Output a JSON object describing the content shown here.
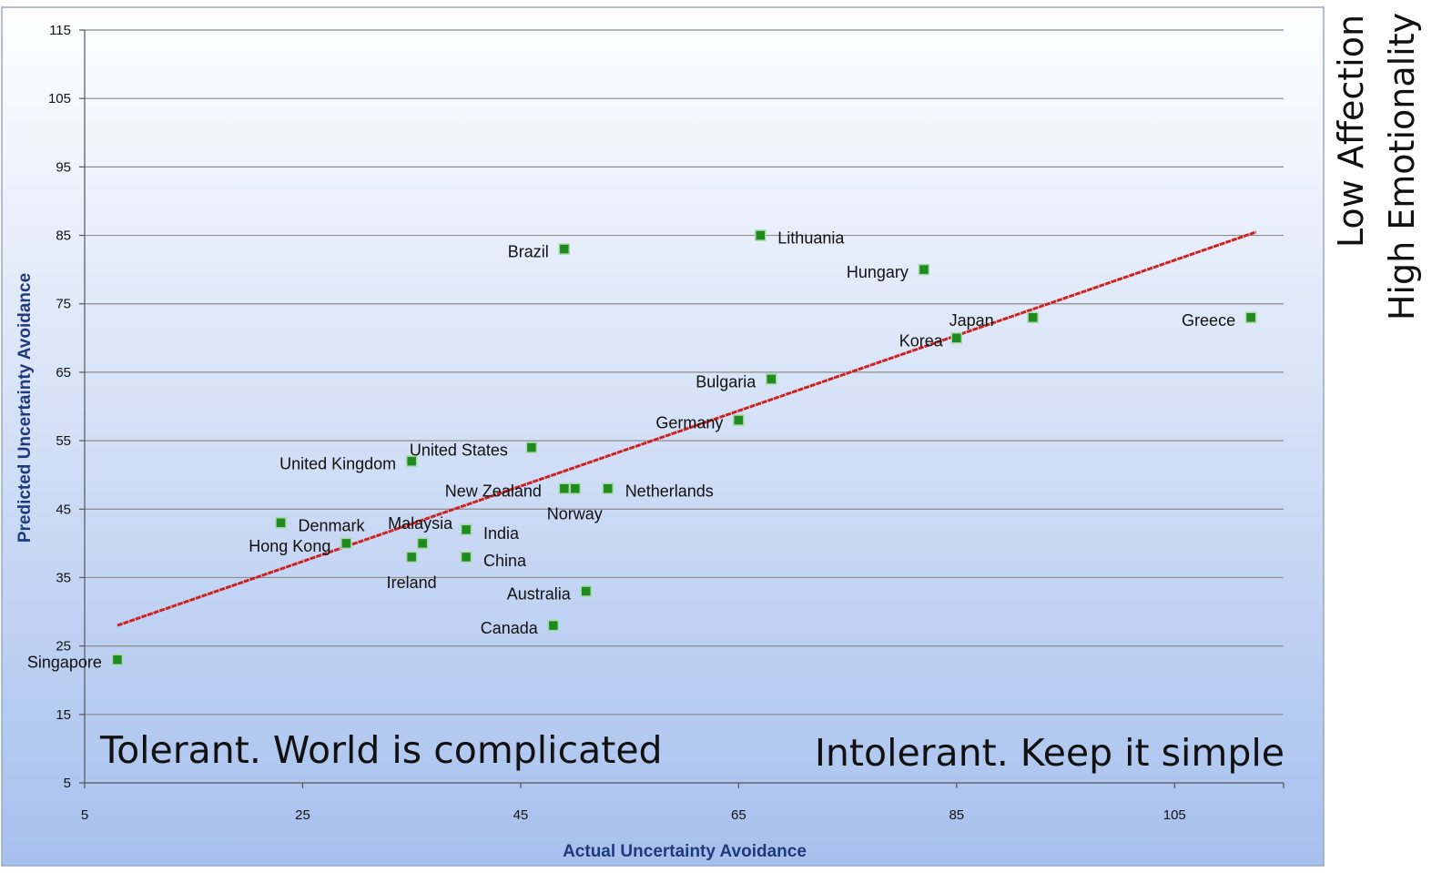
{
  "chart_data": {
    "type": "scatter",
    "title": "",
    "xlabel": "Actual Uncertainty Avoidance",
    "ylabel": "Predicted Uncertainty Avoidance",
    "xlim": [
      5,
      115
    ],
    "ylim": [
      5,
      115
    ],
    "x_ticks": [
      5,
      25,
      45,
      65,
      85,
      105
    ],
    "y_ticks": [
      5,
      15,
      25,
      35,
      45,
      55,
      65,
      75,
      85,
      95,
      105,
      115
    ],
    "grid": "horizontal",
    "legend": "none",
    "points": [
      {
        "label": "Singapore",
        "x": 8,
        "y": 23
      },
      {
        "label": "Denmark",
        "x": 23,
        "y": 43
      },
      {
        "label": "Hong Kong",
        "x": 29,
        "y": 40
      },
      {
        "label": "Ireland",
        "x": 35,
        "y": 38
      },
      {
        "label": "United Kingdom",
        "x": 35,
        "y": 52
      },
      {
        "label": "Malaysia",
        "x": 36,
        "y": 40
      },
      {
        "label": "India",
        "x": 40,
        "y": 42
      },
      {
        "label": "China",
        "x": 40,
        "y": 38
      },
      {
        "label": "United States",
        "x": 46,
        "y": 54
      },
      {
        "label": "Canada",
        "x": 48,
        "y": 28
      },
      {
        "label": "Brazil",
        "x": 49,
        "y": 83
      },
      {
        "label": "New Zealand",
        "x": 49,
        "y": 48
      },
      {
        "label": "Norway",
        "x": 50,
        "y": 48
      },
      {
        "label": "Australia",
        "x": 51,
        "y": 33
      },
      {
        "label": "Netherlands",
        "x": 53,
        "y": 48
      },
      {
        "label": "Germany",
        "x": 65,
        "y": 58
      },
      {
        "label": "Lithuania",
        "x": 67,
        "y": 85
      },
      {
        "label": "Bulgaria",
        "x": 68,
        "y": 64
      },
      {
        "label": "Hungary",
        "x": 82,
        "y": 80
      },
      {
        "label": "Korea",
        "x": 85,
        "y": 70
      },
      {
        "label": "Japan",
        "x": 92,
        "y": 73
      },
      {
        "label": "Greece",
        "x": 112,
        "y": 73
      }
    ],
    "trendline": {
      "x": [
        8,
        112.5
      ],
      "y": [
        28,
        85.5
      ],
      "color": "#cc2222"
    },
    "marker_color": "#1f8a1f",
    "annotations": [
      "Tolerant. World is complicated",
      "Intolerant.  Keep it simple"
    ]
  },
  "side_notes": [
    "Low Affection",
    "High Emotionality"
  ],
  "colors": {
    "plot_bg_top": "#ffffff",
    "plot_bg_bottom": "#a6c0ee",
    "grid": "#8c8c8c",
    "axis_title": "#1f3a7a"
  }
}
